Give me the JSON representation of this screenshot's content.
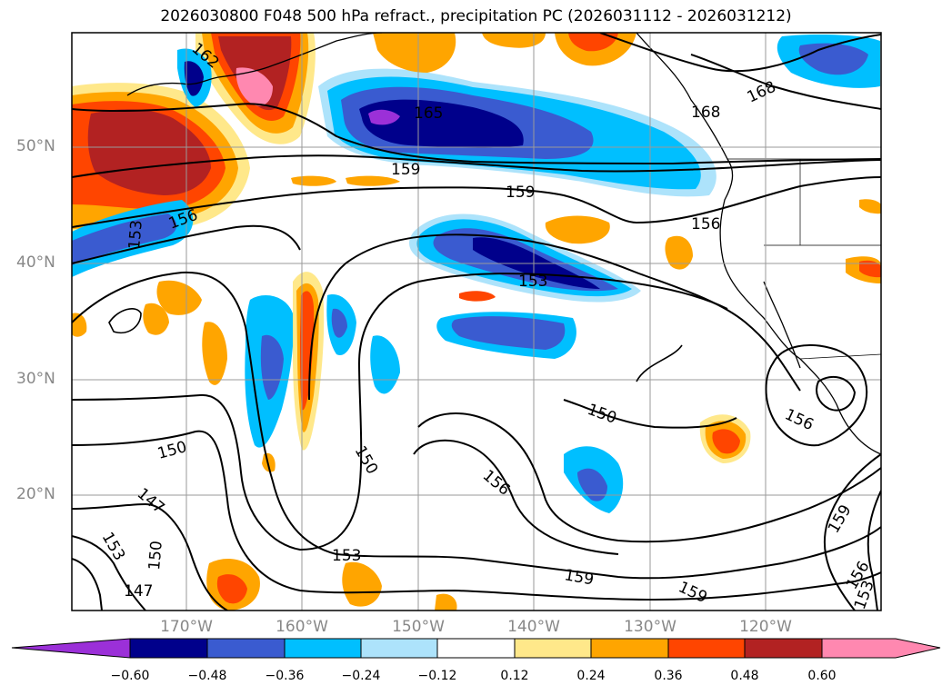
{
  "title": "2026030800 F048 500 hPa refract., precipitation PC (2026031112 - 2026031212)",
  "map": {
    "lat_labels": [
      "50°N",
      "40°N",
      "30°N",
      "20°N"
    ],
    "lon_labels": [
      "170°W",
      "160°W",
      "150°W",
      "140°W",
      "130°W",
      "120°W"
    ],
    "contour_labels": [
      "162",
      "165",
      "168",
      "168",
      "159",
      "159",
      "156",
      "156",
      "153",
      "153",
      "150",
      "150",
      "150",
      "156",
      "156",
      "147",
      "153",
      "150",
      "153",
      "159",
      "159",
      "159",
      "156",
      "153",
      "147"
    ]
  },
  "colorbar": {
    "labels": [
      "−0.60",
      "−0.48",
      "−0.36",
      "−0.24",
      "−0.12",
      "0.12",
      "0.24",
      "0.36",
      "0.48",
      "0.60"
    ],
    "colors": [
      "#9b30d8",
      "#00008b",
      "#3a5bd0",
      "#00bfff",
      "#ade3fb",
      "#ffffff",
      "#ffe88a",
      "#ffa500",
      "#ff4500",
      "#b22222",
      "#ff88b0"
    ]
  }
}
